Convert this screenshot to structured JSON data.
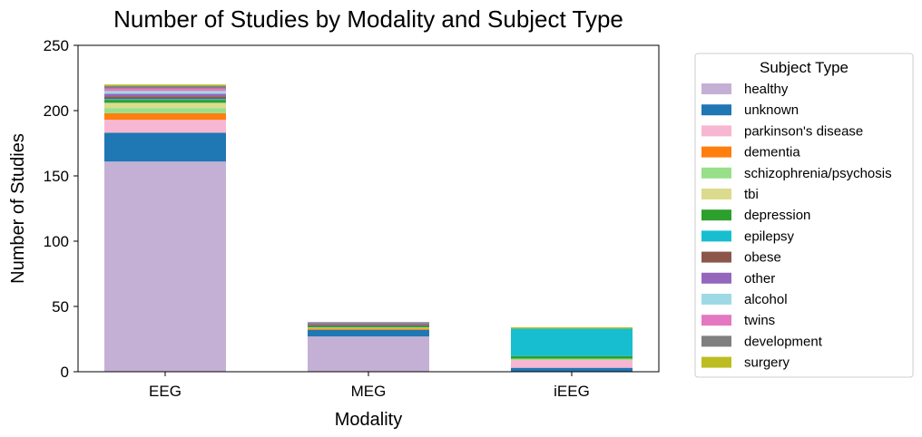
{
  "chart_data": {
    "type": "bar",
    "stacked": true,
    "title": "Number of Studies by Modality and Subject Type",
    "xlabel": "Modality",
    "ylabel": "Number of Studies",
    "ylim": [
      0,
      250
    ],
    "yticks": [
      "0",
      "50",
      "100",
      "150",
      "200",
      "250"
    ],
    "categories": [
      "EEG",
      "MEG",
      "iEEG"
    ],
    "grid": false,
    "legend": {
      "title": "Subject Type",
      "placement": "right-outside"
    },
    "series": [
      {
        "name": "healthy",
        "color": "#c5b0d5",
        "values": [
          161,
          27,
          0
        ]
      },
      {
        "name": "unknown",
        "color": "#1f77b4",
        "values": [
          22,
          5,
          3
        ]
      },
      {
        "name": "parkinson's disease",
        "color": "#f7b6d2",
        "values": [
          10,
          0,
          6
        ]
      },
      {
        "name": "dementia",
        "color": "#ff7f0e",
        "values": [
          5,
          1,
          0
        ]
      },
      {
        "name": "schizophrenia/psychosis",
        "color": "#98df8a",
        "values": [
          4,
          1,
          1
        ]
      },
      {
        "name": "tbi",
        "color": "#dbdb8d",
        "values": [
          4,
          0,
          0
        ]
      },
      {
        "name": "depression",
        "color": "#2ca02c",
        "values": [
          2,
          1,
          2
        ]
      },
      {
        "name": "epilepsy",
        "color": "#17becf",
        "values": [
          1,
          0,
          21
        ]
      },
      {
        "name": "obese",
        "color": "#8c564b",
        "values": [
          2,
          1,
          0
        ]
      },
      {
        "name": "other",
        "color": "#9467bd",
        "values": [
          2,
          1,
          0
        ]
      },
      {
        "name": "alcohol",
        "color": "#9edae5",
        "values": [
          2,
          0,
          0
        ]
      },
      {
        "name": "twins",
        "color": "#e377c2",
        "values": [
          2,
          0,
          0
        ]
      },
      {
        "name": "development",
        "color": "#7f7f7f",
        "values": [
          2,
          1,
          0
        ]
      },
      {
        "name": "surgery",
        "color": "#bcbd22",
        "values": [
          1,
          0,
          1
        ]
      }
    ]
  }
}
